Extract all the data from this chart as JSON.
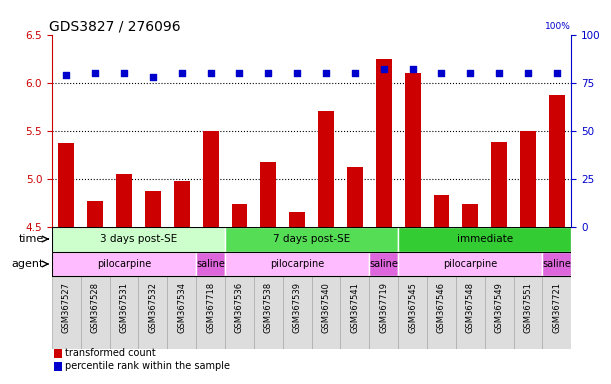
{
  "title": "GDS3827 / 276096",
  "samples": [
    "GSM367527",
    "GSM367528",
    "GSM367531",
    "GSM367532",
    "GSM367534",
    "GSM367718",
    "GSM367536",
    "GSM367538",
    "GSM367539",
    "GSM367540",
    "GSM367541",
    "GSM367719",
    "GSM367545",
    "GSM367546",
    "GSM367548",
    "GSM367549",
    "GSM367551",
    "GSM367721"
  ],
  "transformed_count": [
    5.37,
    4.77,
    5.05,
    4.87,
    4.97,
    5.5,
    4.73,
    5.17,
    4.65,
    5.7,
    5.12,
    6.25,
    6.1,
    4.83,
    4.73,
    5.38,
    5.5,
    5.87
  ],
  "percentile_rank": [
    79,
    80,
    80,
    78,
    80,
    80,
    80,
    80,
    80,
    80,
    80,
    82,
    82,
    80,
    80,
    80,
    80,
    80
  ],
  "ylim_left": [
    4.5,
    6.5
  ],
  "ylim_right": [
    0,
    100
  ],
  "yticks_left": [
    4.5,
    5.0,
    5.5,
    6.0,
    6.5
  ],
  "yticks_right": [
    0,
    25,
    50,
    75,
    100
  ],
  "bar_color": "#cc0000",
  "dot_color": "#0000cc",
  "gridline_color": "#000000",
  "gridline_values": [
    5.0,
    5.5,
    6.0
  ],
  "time_groups": [
    {
      "label": "3 days post-SE",
      "start": 0,
      "end": 5,
      "color": "#ccffcc"
    },
    {
      "label": "7 days post-SE",
      "start": 6,
      "end": 11,
      "color": "#55dd55"
    },
    {
      "label": "immediate",
      "start": 12,
      "end": 17,
      "color": "#33cc33"
    }
  ],
  "agent_groups": [
    {
      "label": "pilocarpine",
      "start": 0,
      "end": 4,
      "color": "#ffbbff"
    },
    {
      "label": "saline",
      "start": 5,
      "end": 5,
      "color": "#dd66dd"
    },
    {
      "label": "pilocarpine",
      "start": 6,
      "end": 10,
      "color": "#ffbbff"
    },
    {
      "label": "saline",
      "start": 11,
      "end": 11,
      "color": "#dd66dd"
    },
    {
      "label": "pilocarpine",
      "start": 12,
      "end": 16,
      "color": "#ffbbff"
    },
    {
      "label": "saline",
      "start": 17,
      "end": 17,
      "color": "#dd66dd"
    }
  ],
  "legend_red_label": "transformed count",
  "legend_blue_label": "percentile rank within the sample",
  "xlabel_time": "time",
  "xlabel_agent": "agent",
  "tick_fontsize": 7.5,
  "title_fontsize": 10,
  "label_row_color": "#dddddd",
  "label_row_edgecolor": "#aaaaaa"
}
